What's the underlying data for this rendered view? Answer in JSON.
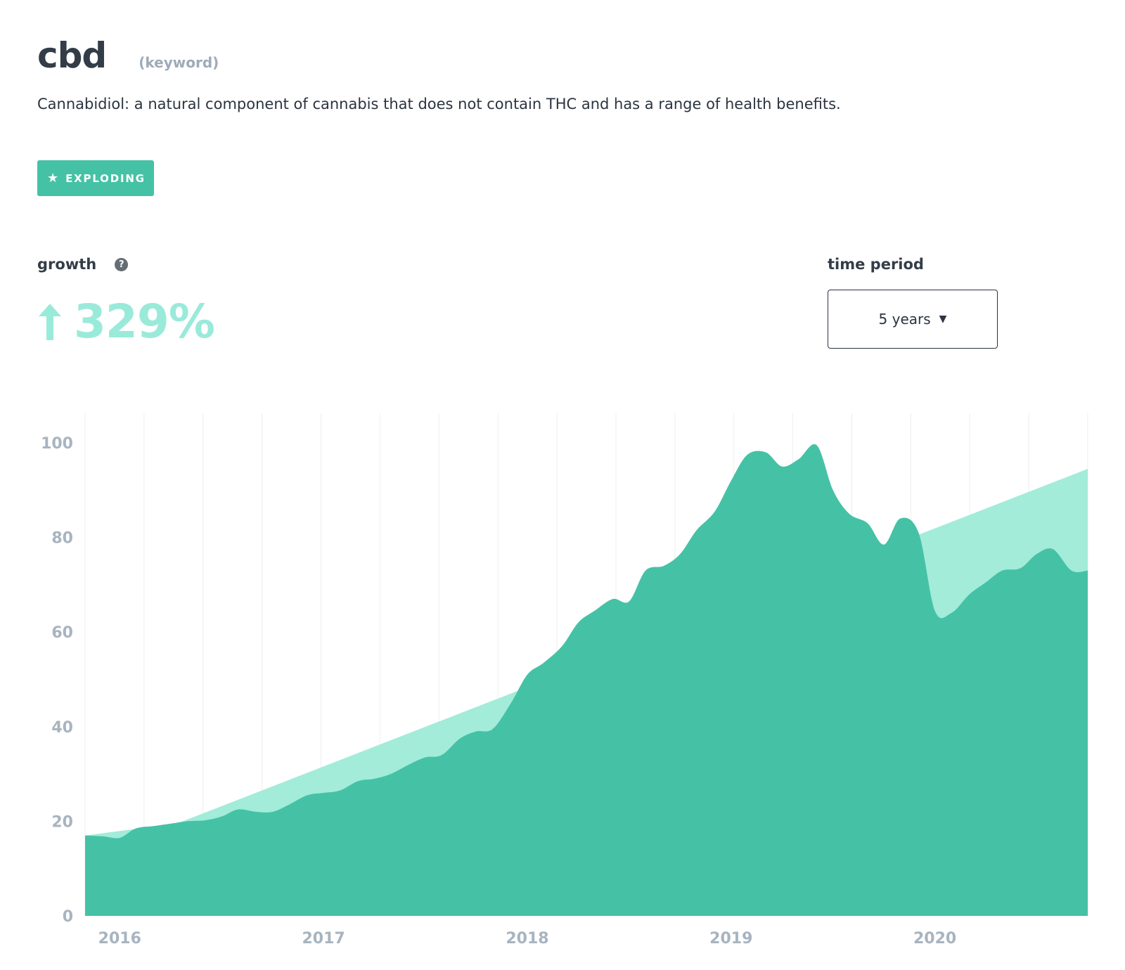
{
  "header": {
    "keyword": "cbd",
    "kind": "(keyword)",
    "description": "Cannabidiol: a natural component of cannabis that does not contain THC and has a range of health benefits."
  },
  "badge": {
    "icon": "star-icon",
    "label": "EXPLODING",
    "color": "#45c2a5"
  },
  "growth": {
    "label": "growth",
    "help_icon": "question-icon",
    "value": "329%",
    "direction": "up",
    "color": "#9aeada"
  },
  "time_period": {
    "label": "time period",
    "selected": "5 years",
    "caret": "▼"
  },
  "colors": {
    "area": "#45c2a5",
    "trend": "#a2ecd9",
    "grid": "#eeeeee",
    "axis_text": "#a8b4c0"
  },
  "chart_data": {
    "type": "area",
    "ylim": [
      0,
      100
    ],
    "yticks": [
      0,
      20,
      40,
      60,
      80,
      100
    ],
    "xlim": [
      2015.83,
      2020.75
    ],
    "xticks": [
      "2016",
      "2017",
      "2018",
      "2019",
      "2020"
    ],
    "grid": "vertical",
    "series": [
      {
        "kind": "actual",
        "x": [
          2015.83,
          2015.92,
          2016.0,
          2016.08,
          2016.17,
          2016.25,
          2016.33,
          2016.42,
          2016.5,
          2016.58,
          2016.67,
          2016.75,
          2016.83,
          2016.92,
          2017.0,
          2017.08,
          2017.17,
          2017.25,
          2017.33,
          2017.42,
          2017.5,
          2017.58,
          2017.67,
          2017.75,
          2017.83,
          2017.92,
          2018.0,
          2018.08,
          2018.17,
          2018.25,
          2018.33,
          2018.42,
          2018.5,
          2018.58,
          2018.67,
          2018.75,
          2018.83,
          2018.92,
          2019.0,
          2019.08,
          2019.17,
          2019.25,
          2019.33,
          2019.42,
          2019.5,
          2019.58,
          2019.67,
          2019.75,
          2019.83,
          2019.92,
          2020.0,
          2020.08,
          2020.17,
          2020.25,
          2020.33,
          2020.42,
          2020.5,
          2020.58,
          2020.67,
          2020.75
        ],
        "values": [
          17,
          16.8,
          16.5,
          18.5,
          19,
          19.5,
          20,
          20.2,
          21,
          22.5,
          22,
          22,
          23.5,
          25.5,
          26,
          26.5,
          28.5,
          29,
          30,
          32,
          33.5,
          34,
          37.5,
          39,
          39.5,
          45,
          51,
          53.5,
          57,
          62,
          64.5,
          67,
          66.5,
          73,
          74,
          76.5,
          81.5,
          85.5,
          92,
          97.5,
          98,
          95,
          96.5,
          99.5,
          90,
          85,
          83,
          78.5,
          84,
          81,
          64.5,
          64,
          68,
          70.5,
          73,
          73.5,
          76.5,
          77.5,
          73,
          73
        ]
      },
      {
        "kind": "trend",
        "x": [
          2015.83,
          2016.28,
          2020.75
        ],
        "values": [
          17,
          19.5,
          94.5
        ]
      }
    ]
  }
}
